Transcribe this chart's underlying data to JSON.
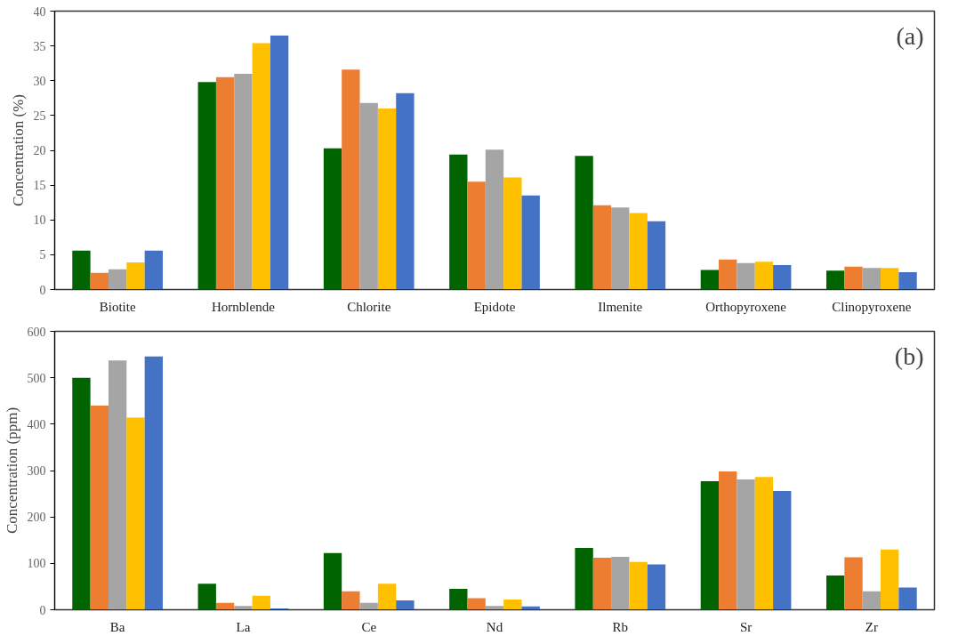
{
  "chart_data": [
    {
      "type": "bar",
      "ylabel": "Concentration (%)",
      "annotations": [
        "(a)"
      ],
      "categories": [
        "Biotite",
        "Hornblende",
        "Chlorite",
        "Epidote",
        "Ilmenite",
        "Orthopyroxene",
        "Clinopyroxene"
      ],
      "ylim": [
        0,
        40
      ],
      "yticks": [
        0,
        5,
        10,
        15,
        20,
        25,
        30,
        35,
        40
      ],
      "grid": false,
      "series": [
        {
          "color": "#006400",
          "values": [
            5.6,
            29.8,
            20.3,
            19.4,
            19.2,
            2.8,
            2.7
          ]
        },
        {
          "color": "#ed7d31",
          "values": [
            2.4,
            30.5,
            31.6,
            15.5,
            12.1,
            4.3,
            3.3
          ]
        },
        {
          "color": "#a5a5a5",
          "values": [
            2.9,
            31.0,
            26.8,
            20.1,
            11.8,
            3.8,
            3.1
          ]
        },
        {
          "color": "#ffc000",
          "values": [
            3.9,
            35.4,
            26.0,
            16.1,
            11.0,
            4.0,
            3.1
          ]
        },
        {
          "color": "#4472c4",
          "values": [
            5.6,
            36.5,
            28.2,
            13.5,
            9.8,
            3.5,
            2.5
          ]
        }
      ]
    },
    {
      "type": "bar",
      "ylabel": "Concentration (ppm)",
      "annotations": [
        "(b)"
      ],
      "categories": [
        "Ba",
        "La",
        "Ce",
        "Nd",
        "Rb",
        "Sr",
        "Zr"
      ],
      "ylim": [
        0,
        600
      ],
      "yticks": [
        0,
        100,
        200,
        300,
        400,
        500,
        600
      ],
      "grid": false,
      "series": [
        {
          "color": "#006400",
          "values": [
            500,
            56,
            122,
            45,
            133,
            277,
            74
          ]
        },
        {
          "color": "#ed7d31",
          "values": [
            440,
            15,
            40,
            25,
            112,
            298,
            113
          ]
        },
        {
          "color": "#a5a5a5",
          "values": [
            537,
            8,
            15,
            8,
            114,
            281,
            40
          ]
        },
        {
          "color": "#ffc000",
          "values": [
            414,
            30,
            56,
            22,
            103,
            286,
            130
          ]
        },
        {
          "color": "#4472c4",
          "values": [
            546,
            3,
            20,
            7,
            98,
            256,
            48
          ]
        }
      ]
    }
  ]
}
